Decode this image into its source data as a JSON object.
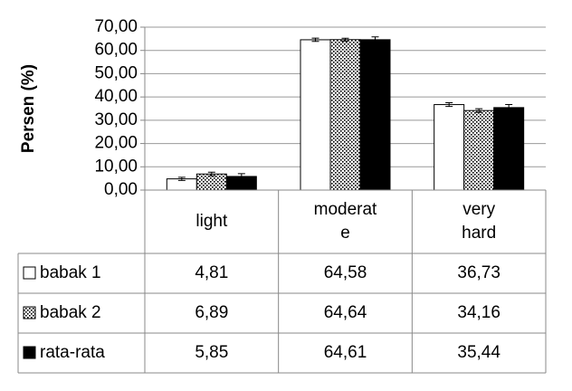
{
  "chart_data": {
    "type": "bar",
    "y_label": "Persen (%)",
    "categories": [
      "light",
      "moderate",
      "very hard"
    ],
    "series": [
      {
        "name": "babak 1",
        "color": "#ffffff",
        "values": [
          4.81,
          64.58,
          36.73
        ],
        "value_labels": [
          "4,81",
          "64,58",
          "36,73"
        ],
        "errors": [
          0.7,
          0.7,
          0.8
        ]
      },
      {
        "name": "babak 2",
        "color": "#ffffff",
        "pattern": "dotted",
        "values": [
          6.89,
          64.64,
          34.16
        ],
        "value_labels": [
          "6,89",
          "64,64",
          "34,16"
        ],
        "errors": [
          0.8,
          0.6,
          0.8
        ]
      },
      {
        "name": "rata-rata",
        "color": "#000000",
        "values": [
          5.85,
          64.61,
          35.44
        ],
        "value_labels": [
          "5,85",
          "64,61",
          "35,44"
        ],
        "errors": [
          1.2,
          1.2,
          1.3
        ]
      }
    ],
    "ylim": [
      0,
      70
    ],
    "yticks": [
      {
        "value": 0,
        "label": "0,00"
      },
      {
        "value": 10,
        "label": "10,00"
      },
      {
        "value": 20,
        "label": "20,00"
      },
      {
        "value": 30,
        "label": "30,00"
      },
      {
        "value": 40,
        "label": "40,00"
      },
      {
        "value": 50,
        "label": "50,00"
      },
      {
        "value": 60,
        "label": "60,00"
      },
      {
        "value": 70,
        "label": "70,00"
      }
    ],
    "grid": true
  }
}
